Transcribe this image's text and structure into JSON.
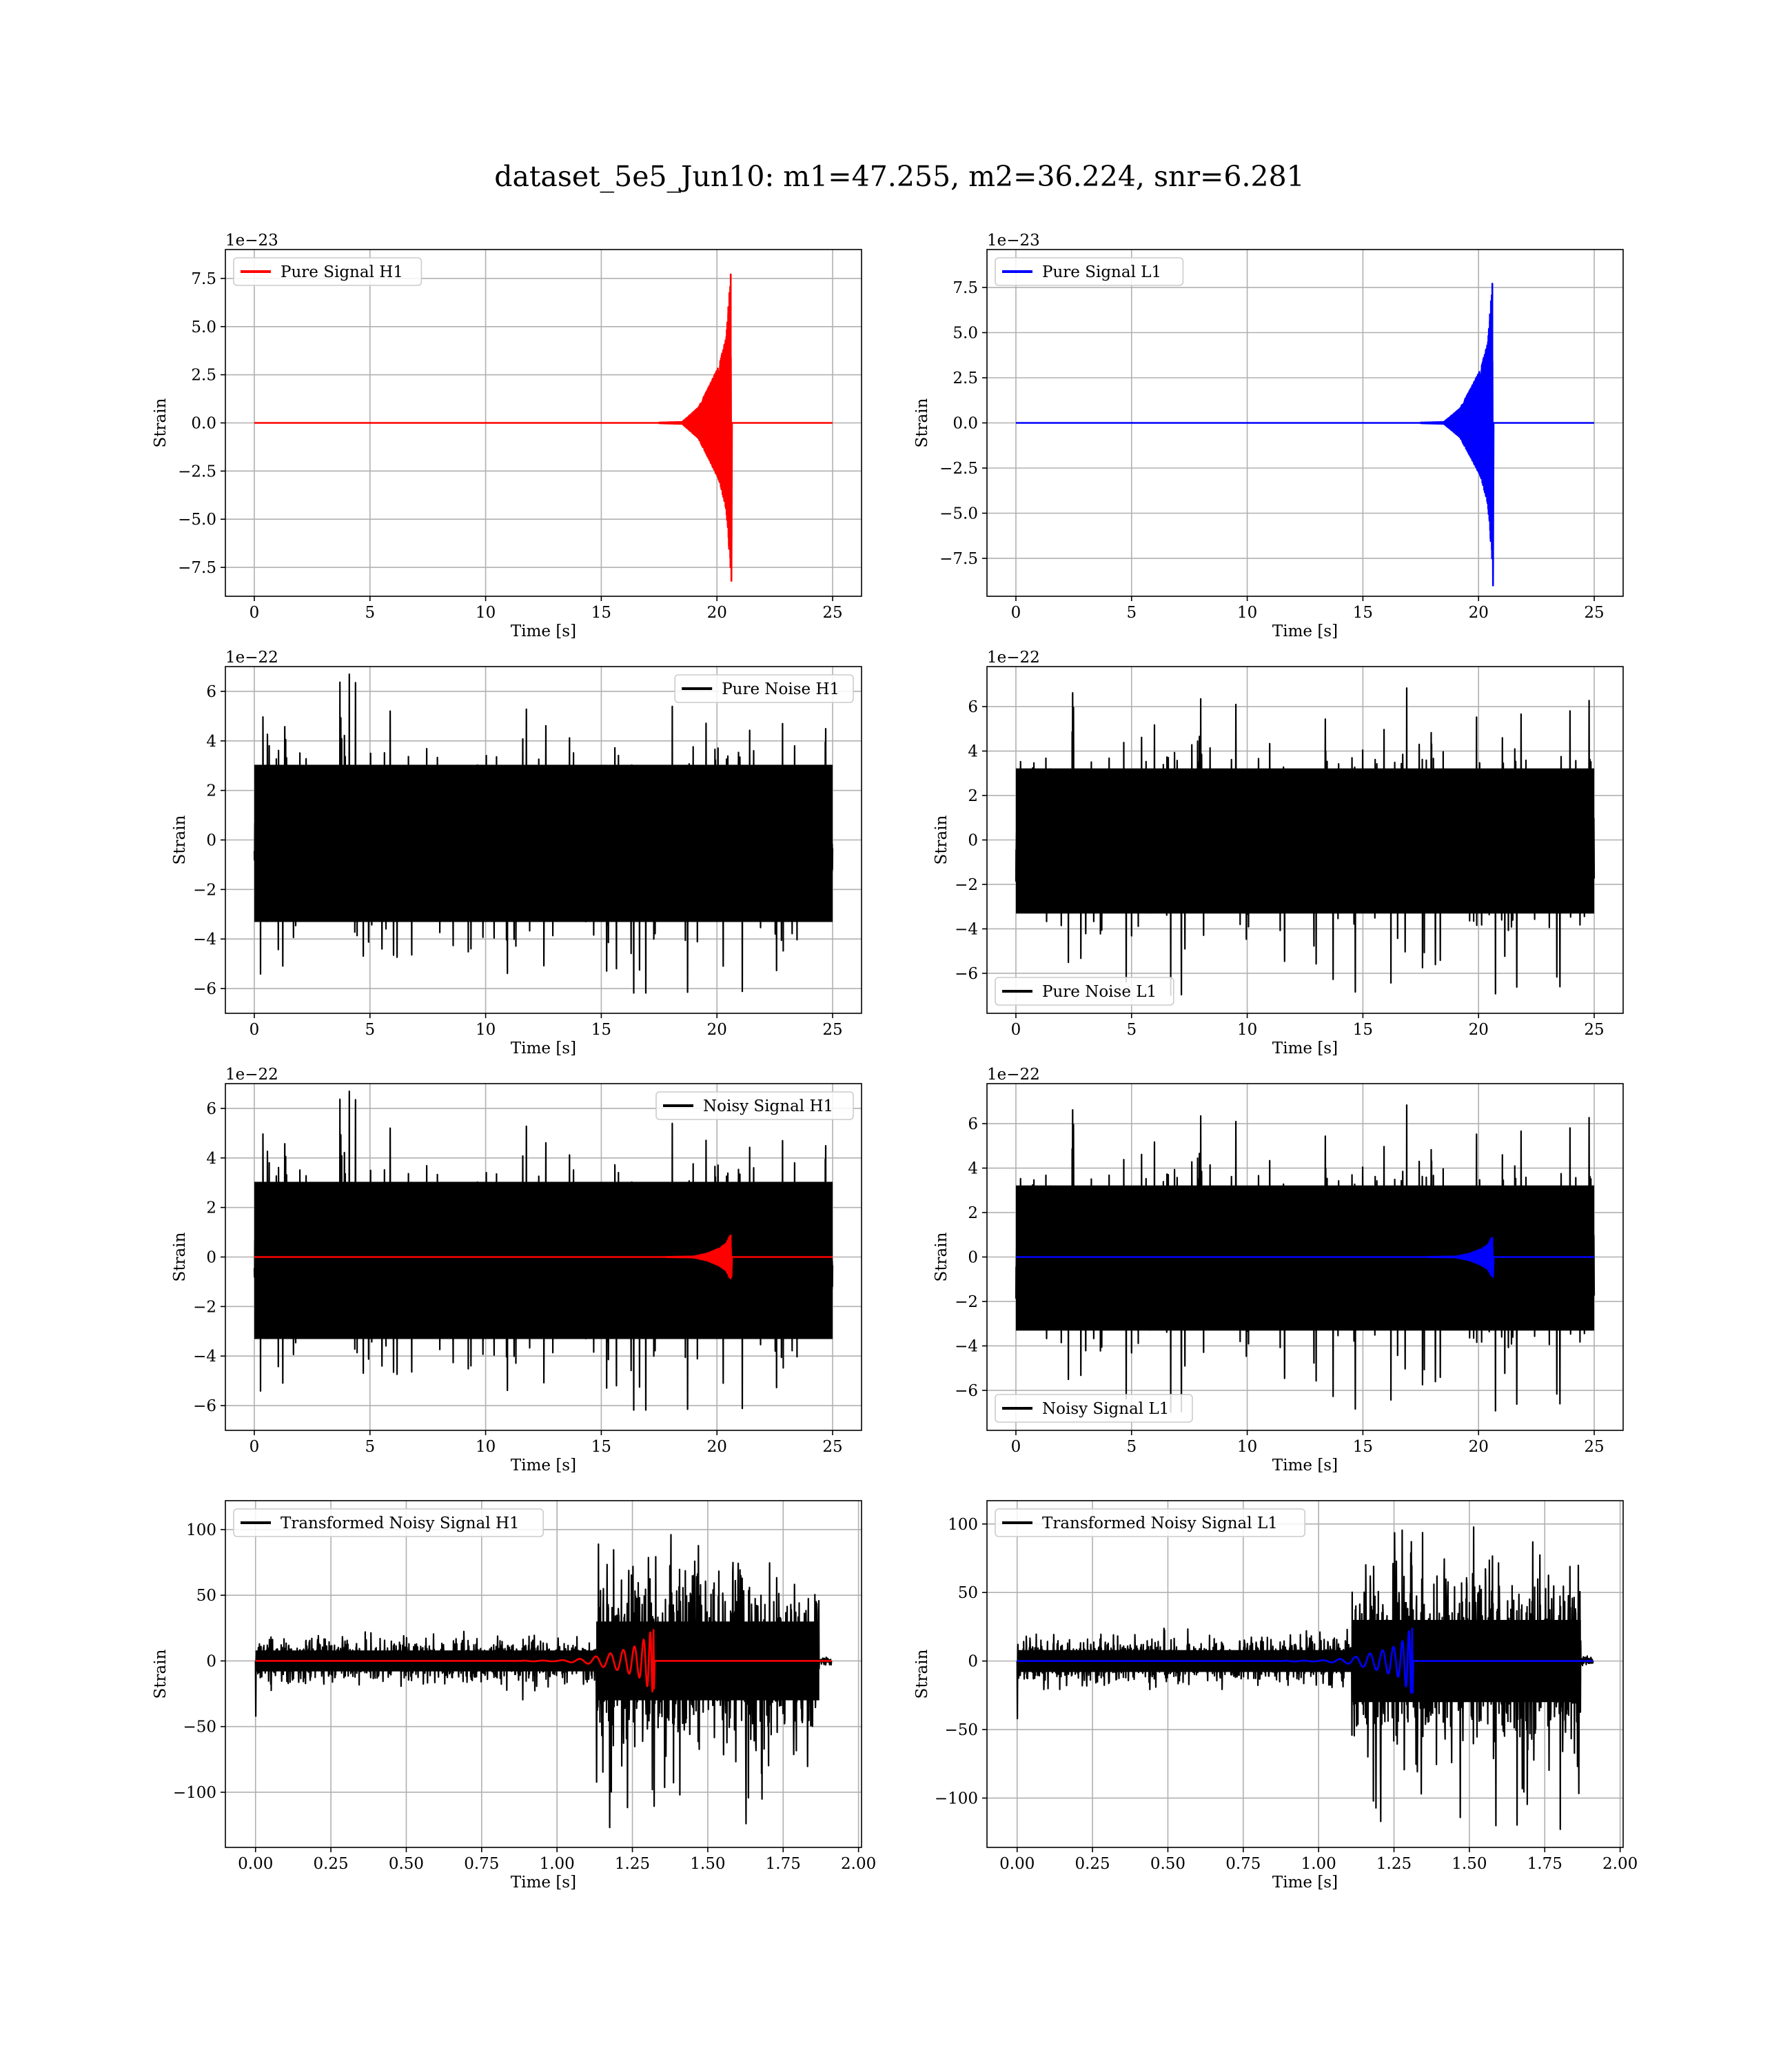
{
  "suptitle": "dataset_5e5_Jun10: m1=47.255, m2=36.224, snr=6.281",
  "colors": {
    "red": "#ff0000",
    "blue": "#0000ff",
    "black": "#000000",
    "grid": "#b0b0b0"
  },
  "chart_data": [
    {
      "id": "pure-signal-h1",
      "type": "line",
      "xlabel": "Time [s]",
      "ylabel": "Strain",
      "offset_text": "1e−23",
      "xlim": [
        -1.25,
        26.25
      ],
      "ylim": [
        -9.0,
        9.0
      ],
      "xticks": [
        0,
        5,
        10,
        15,
        20,
        25
      ],
      "xticklabels": [
        "0",
        "5",
        "10",
        "15",
        "20",
        "25"
      ],
      "yticks": [
        -7.5,
        -5.0,
        -2.5,
        0.0,
        2.5,
        5.0,
        7.5
      ],
      "yticklabels": [
        "−7.5",
        "−5.0",
        "−2.5",
        "0.0",
        "2.5",
        "5.0",
        "7.5"
      ],
      "legend": "upper-left",
      "grid": true,
      "series": [
        {
          "name": "Pure Signal H1",
          "color": "#ff0000",
          "kind": "chirp",
          "x_start": 0,
          "x_end": 25,
          "x_merger": 20.6,
          "onset": 19.0,
          "envelope": [
            [
              18.5,
              0.05
            ],
            [
              19.2,
              0.8
            ],
            [
              19.7,
              2.0
            ],
            [
              20.1,
              3.0
            ],
            [
              20.4,
              4.5
            ],
            [
              20.55,
              7.0
            ],
            [
              20.65,
              8.6
            ]
          ],
          "peak_neg": -8.2
        }
      ]
    },
    {
      "id": "pure-signal-l1",
      "type": "line",
      "xlabel": "Time [s]",
      "ylabel": "Strain",
      "offset_text": "1e−23",
      "xlim": [
        -1.25,
        26.25
      ],
      "ylim": [
        -9.6,
        9.6
      ],
      "xticks": [
        0,
        5,
        10,
        15,
        20,
        25
      ],
      "xticklabels": [
        "0",
        "5",
        "10",
        "15",
        "20",
        "25"
      ],
      "yticks": [
        -7.5,
        -5.0,
        -2.5,
        0.0,
        2.5,
        5.0,
        7.5
      ],
      "yticklabels": [
        "−7.5",
        "−5.0",
        "−2.5",
        "0.0",
        "2.5",
        "5.0",
        "7.5"
      ],
      "legend": "upper-left",
      "grid": true,
      "series": [
        {
          "name": "Pure Signal L1",
          "color": "#0000ff",
          "kind": "chirp",
          "x_start": 0,
          "x_end": 25,
          "x_merger": 20.6,
          "onset": 19.0,
          "envelope": [
            [
              18.5,
              0.05
            ],
            [
              19.2,
              0.8
            ],
            [
              19.7,
              2.0
            ],
            [
              20.1,
              3.0
            ],
            [
              20.4,
              4.5
            ],
            [
              20.55,
              7.0
            ],
            [
              20.65,
              8.6
            ]
          ],
          "peak_neg": -9.0
        }
      ]
    },
    {
      "id": "pure-noise-h1",
      "type": "line",
      "xlabel": "Time [s]",
      "ylabel": "Strain",
      "offset_text": "1e−22",
      "xlim": [
        -1.25,
        26.25
      ],
      "ylim": [
        -7.0,
        7.0
      ],
      "xticks": [
        0,
        5,
        10,
        15,
        20,
        25
      ],
      "xticklabels": [
        "0",
        "5",
        "10",
        "15",
        "20",
        "25"
      ],
      "yticks": [
        -6,
        -4,
        -2,
        0,
        2,
        4,
        6
      ],
      "yticklabels": [
        "−6",
        "−4",
        "−2",
        "0",
        "2",
        "4",
        "6"
      ],
      "legend": "upper-right",
      "grid": true,
      "series": [
        {
          "name": "Pure Noise H1",
          "color": "#000000",
          "kind": "noise",
          "x_start": 0,
          "x_end": 25,
          "band": [
            -3.6,
            3.3
          ],
          "spike_max": 6.7,
          "spike_min": -6.4,
          "seed": 11
        }
      ]
    },
    {
      "id": "pure-noise-l1",
      "type": "line",
      "xlabel": "Time [s]",
      "ylabel": "Strain",
      "offset_text": "1e−22",
      "xlim": [
        -1.25,
        26.25
      ],
      "ylim": [
        -7.8,
        7.8
      ],
      "xticks": [
        0,
        5,
        10,
        15,
        20,
        25
      ],
      "xticklabels": [
        "0",
        "5",
        "10",
        "15",
        "20",
        "25"
      ],
      "yticks": [
        -6,
        -4,
        -2,
        0,
        2,
        4,
        6
      ],
      "yticklabels": [
        "−6",
        "−4",
        "−2",
        "0",
        "2",
        "4",
        "6"
      ],
      "legend": "lower-left",
      "grid": true,
      "series": [
        {
          "name": "Pure Noise L1",
          "color": "#000000",
          "kind": "noise",
          "x_start": 0,
          "x_end": 25,
          "band": [
            -3.6,
            3.5
          ],
          "spike_max": 7.0,
          "spike_min": -7.0,
          "seed": 23
        }
      ]
    },
    {
      "id": "noisy-signal-h1",
      "type": "line",
      "xlabel": "Time [s]",
      "ylabel": "Strain",
      "offset_text": "1e−22",
      "xlim": [
        -1.25,
        26.25
      ],
      "ylim": [
        -7.0,
        7.0
      ],
      "xticks": [
        0,
        5,
        10,
        15,
        20,
        25
      ],
      "xticklabels": [
        "0",
        "5",
        "10",
        "15",
        "20",
        "25"
      ],
      "yticks": [
        -6,
        -4,
        -2,
        0,
        2,
        4,
        6
      ],
      "yticklabels": [
        "−6",
        "−4",
        "−2",
        "0",
        "2",
        "4",
        "6"
      ],
      "legend": "upper-right",
      "grid": true,
      "series": [
        {
          "name": "Noisy Signal H1",
          "color": "#000000",
          "kind": "noise",
          "x_start": 0,
          "x_end": 25,
          "band": [
            -3.6,
            3.3
          ],
          "spike_max": 6.7,
          "spike_min": -6.4,
          "seed": 11
        },
        {
          "name": "",
          "color": "#ff0000",
          "kind": "chirp",
          "x_start": 0,
          "x_end": 25,
          "x_merger": 20.6,
          "onset": 19.3,
          "envelope": [
            [
              19.0,
              0.02
            ],
            [
              19.6,
              0.15
            ],
            [
              20.1,
              0.35
            ],
            [
              20.4,
              0.55
            ],
            [
              20.55,
              0.85
            ],
            [
              20.65,
              0.9
            ]
          ],
          "peak_neg": -0.8
        }
      ]
    },
    {
      "id": "noisy-signal-l1",
      "type": "line",
      "xlabel": "Time [s]",
      "ylabel": "Strain",
      "offset_text": "1e−22",
      "xlim": [
        -1.25,
        26.25
      ],
      "ylim": [
        -7.8,
        7.8
      ],
      "xticks": [
        0,
        5,
        10,
        15,
        20,
        25
      ],
      "xticklabels": [
        "0",
        "5",
        "10",
        "15",
        "20",
        "25"
      ],
      "yticks": [
        -6,
        -4,
        -2,
        0,
        2,
        4,
        6
      ],
      "yticklabels": [
        "−6",
        "−4",
        "−2",
        "0",
        "2",
        "4",
        "6"
      ],
      "legend": "lower-left",
      "grid": true,
      "series": [
        {
          "name": "Noisy Signal L1",
          "color": "#000000",
          "kind": "noise",
          "x_start": 0,
          "x_end": 25,
          "band": [
            -3.6,
            3.5
          ],
          "spike_max": 7.0,
          "spike_min": -7.0,
          "seed": 23
        },
        {
          "name": "",
          "color": "#0000ff",
          "kind": "chirp",
          "x_start": 0,
          "x_end": 25,
          "x_merger": 20.6,
          "onset": 19.3,
          "envelope": [
            [
              19.0,
              0.02
            ],
            [
              19.6,
              0.15
            ],
            [
              20.1,
              0.35
            ],
            [
              20.4,
              0.55
            ],
            [
              20.55,
              0.85
            ],
            [
              20.65,
              0.9
            ]
          ],
          "peak_neg": -0.9
        }
      ]
    },
    {
      "id": "transformed-noisy-signal-h1",
      "type": "line",
      "xlabel": "Time [s]",
      "ylabel": "Strain",
      "offset_text": "",
      "xlim": [
        -0.1,
        2.01
      ],
      "ylim": [
        -142,
        122
      ],
      "xticks": [
        0,
        0.25,
        0.5,
        0.75,
        1.0,
        1.25,
        1.5,
        1.75,
        2.0
      ],
      "xticklabels": [
        "0.00",
        "0.25",
        "0.50",
        "0.75",
        "1.00",
        "1.25",
        "1.50",
        "1.75",
        "2.00"
      ],
      "yticks": [
        -100,
        -50,
        0,
        50,
        100
      ],
      "yticklabels": [
        "−100",
        "−50",
        "0",
        "50",
        "100"
      ],
      "legend": "upper-left",
      "grid": true,
      "series": [
        {
          "name": "Transformed Noisy Signal H1",
          "color": "#000000",
          "kind": "tnoise",
          "x_start": 0,
          "x_end": 1.91,
          "low_amp": 14,
          "jump": 1.13,
          "high_amp": 55,
          "cut": 1.87,
          "spike_max": 97,
          "spike_min": -128,
          "seed": 5
        },
        {
          "name": "",
          "color": "#ff0000",
          "kind": "tchirp",
          "x_start": 0,
          "x_end": 1.91,
          "x_merger": 1.32,
          "onset": 1.0,
          "envelope": [
            [
              1.0,
              0.3
            ],
            [
              1.1,
              2.0
            ],
            [
              1.2,
              7.0
            ],
            [
              1.27,
              12.0
            ],
            [
              1.31,
              22.0
            ],
            [
              1.32,
              24.0
            ]
          ],
          "peak_neg": -21
        }
      ]
    },
    {
      "id": "transformed-noisy-signal-l1",
      "type": "line",
      "xlabel": "Time [s]",
      "ylabel": "Strain",
      "offset_text": "",
      "xlim": [
        -0.1,
        2.01
      ],
      "ylim": [
        -136,
        117
      ],
      "xticks": [
        0,
        0.25,
        0.5,
        0.75,
        1.0,
        1.25,
        1.5,
        1.75,
        2.0
      ],
      "xticklabels": [
        "0.00",
        "0.25",
        "0.50",
        "0.75",
        "1.00",
        "1.25",
        "1.50",
        "1.75",
        "2.00"
      ],
      "yticks": [
        -100,
        -50,
        0,
        50,
        100
      ],
      "yticklabels": [
        "−100",
        "−50",
        "0",
        "50",
        "100"
      ],
      "legend": "upper-left",
      "grid": true,
      "series": [
        {
          "name": "Transformed Noisy Signal L1",
          "color": "#000000",
          "kind": "tnoise",
          "x_start": 0,
          "x_end": 1.91,
          "low_amp": 14,
          "jump": 1.11,
          "high_amp": 55,
          "cut": 1.87,
          "spike_max": 105,
          "spike_min": -128,
          "seed": 9
        },
        {
          "name": "",
          "color": "#0000ff",
          "kind": "tchirp",
          "x_start": 0,
          "x_end": 1.91,
          "x_merger": 1.31,
          "onset": 1.0,
          "envelope": [
            [
              1.0,
              0.3
            ],
            [
              1.1,
              2.0
            ],
            [
              1.2,
              7.0
            ],
            [
              1.27,
              12.0
            ],
            [
              1.3,
              22.0
            ],
            [
              1.31,
              24.0
            ]
          ],
          "peak_neg": -23
        }
      ]
    }
  ]
}
